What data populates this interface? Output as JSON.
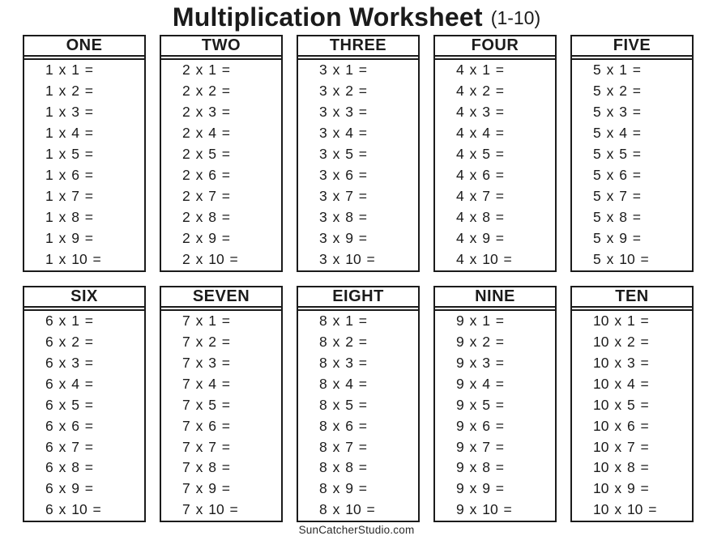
{
  "title": {
    "main": "Multiplication Worksheet",
    "suffix": "(1-10)"
  },
  "footer": "SunCatcherStudio.com",
  "colors": {
    "ink": "#1b1b1b",
    "background": "#ffffff"
  },
  "columns": [
    {
      "header": "ONE",
      "problems": [
        "1 x 1 =",
        "1 x 2 =",
        "1 x 3 =",
        "1 x 4 =",
        "1 x 5 =",
        "1 x 6 =",
        "1 x 7 =",
        "1 x 8 =",
        "1 x 9 =",
        "1 x 10 ="
      ]
    },
    {
      "header": "TWO",
      "problems": [
        "2 x 1 =",
        "2 x 2 =",
        "2 x 3 =",
        "2 x 4 =",
        "2 x 5 =",
        "2 x 6 =",
        "2 x 7 =",
        "2 x 8 =",
        "2 x 9 =",
        "2 x 10 ="
      ]
    },
    {
      "header": "THREE",
      "problems": [
        "3 x 1 =",
        "3 x 2 =",
        "3 x 3 =",
        "3 x 4 =",
        "3 x 5 =",
        "3 x 6 =",
        "3 x 7 =",
        "3 x 8 =",
        "3 x 9 =",
        "3 x 10 ="
      ]
    },
    {
      "header": "FOUR",
      "problems": [
        "4 x 1 =",
        "4 x 2 =",
        "4 x 3 =",
        "4 x 4 =",
        "4 x 5 =",
        "4 x 6 =",
        "4 x 7 =",
        "4 x 8 =",
        "4 x 9 =",
        "4 x 10 ="
      ]
    },
    {
      "header": "FIVE",
      "problems": [
        "5 x 1 =",
        "5 x 2 =",
        "5 x 3 =",
        "5 x 4 =",
        "5 x 5 =",
        "5 x 6 =",
        "5 x 7 =",
        "5 x 8 =",
        "5 x 9 =",
        "5 x 10 ="
      ]
    },
    {
      "header": "SIX",
      "problems": [
        "6 x 1 =",
        "6 x 2 =",
        "6 x 3 =",
        "6 x 4 =",
        "6 x 5 =",
        "6 x 6 =",
        "6 x 7 =",
        "6 x 8 =",
        "6 x 9 =",
        "6 x 10 ="
      ]
    },
    {
      "header": "SEVEN",
      "problems": [
        "7 x 1 =",
        "7 x 2 =",
        "7 x 3 =",
        "7 x 4 =",
        "7 x 5 =",
        "7 x 6 =",
        "7 x 7 =",
        "7 x 8 =",
        "7 x 9 =",
        "7 x 10 ="
      ]
    },
    {
      "header": "EIGHT",
      "problems": [
        "8 x 1 =",
        "8 x 2 =",
        "8 x 3 =",
        "8 x 4 =",
        "8 x 5 =",
        "8 x 6 =",
        "8 x 7 =",
        "8 x 8 =",
        "8 x 9 =",
        "8 x 10 ="
      ]
    },
    {
      "header": "NINE",
      "problems": [
        "9 x 1 =",
        "9 x 2 =",
        "9 x 3 =",
        "9 x 4 =",
        "9 x 5 =",
        "9 x 6 =",
        "9 x 7 =",
        "9 x 8 =",
        "9 x 9 =",
        "9 x 10 ="
      ]
    },
    {
      "header": "TEN",
      "problems": [
        "10 x 1 =",
        "10 x 2 =",
        "10 x 3 =",
        "10 x 4 =",
        "10 x 5 =",
        "10 x 6 =",
        "10 x 7 =",
        "10 x 8 =",
        "10 x 9 =",
        "10 x 10 ="
      ]
    }
  ]
}
